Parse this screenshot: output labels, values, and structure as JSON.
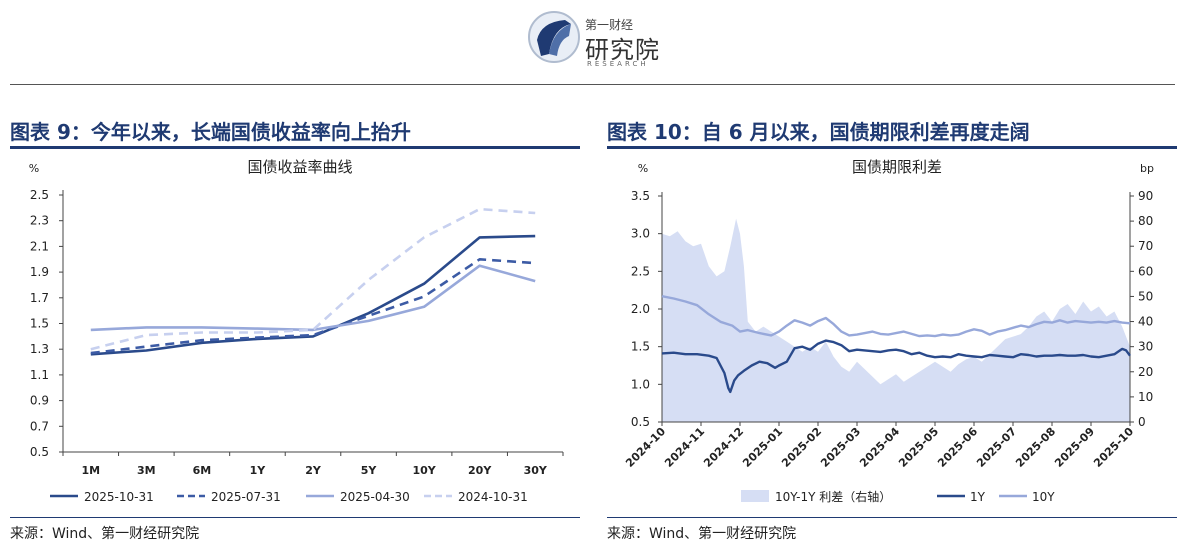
{
  "logo": {
    "top": "第一财经",
    "main": "研究院",
    "sub": "RESEARCH"
  },
  "left_panel": {
    "title": "图表 9：今年以来，长端国债收益率向上抬升",
    "source": "来源：Wind、第一财经研究院"
  },
  "right_panel": {
    "title": "图表 10：自 6 月以来，国债期限利差再度走阔",
    "source": "来源：Wind、第一财经研究院"
  },
  "chart_data": [
    {
      "type": "line",
      "title": "国债收益率曲线",
      "ylabel": "%",
      "categories": [
        "1M",
        "3M",
        "6M",
        "1Y",
        "2Y",
        "5Y",
        "10Y",
        "20Y",
        "30Y"
      ],
      "ylim": [
        0.5,
        2.5
      ],
      "yticks": [
        "0.5",
        "0.7",
        "0.9",
        "1.1",
        "1.3",
        "1.5",
        "1.7",
        "1.9",
        "2.1",
        "2.3",
        "2.5"
      ],
      "grid": false,
      "legend": "bottom",
      "series": [
        {
          "name": "2025-10-31",
          "color": "#2a4a8b",
          "dash": "solid",
          "values": [
            1.26,
            1.29,
            1.35,
            1.38,
            1.4,
            1.58,
            1.81,
            2.17,
            2.18
          ]
        },
        {
          "name": "2025-07-31",
          "color": "#3c5ba5",
          "dash": "dashed",
          "values": [
            1.27,
            1.32,
            1.37,
            1.39,
            1.41,
            1.56,
            1.71,
            2.0,
            1.97
          ]
        },
        {
          "name": "2025-04-30",
          "color": "#97a8da",
          "dash": "solid",
          "values": [
            1.45,
            1.47,
            1.47,
            1.46,
            1.45,
            1.52,
            1.63,
            1.95,
            1.83
          ]
        },
        {
          "name": "2024-10-31",
          "color": "#c7d0ef",
          "dash": "dashed",
          "values": [
            1.3,
            1.41,
            1.43,
            1.43,
            1.45,
            1.84,
            2.17,
            2.39,
            2.36
          ]
        }
      ]
    },
    {
      "type": "line",
      "title": "国债期限利差",
      "ylabel": "%",
      "y2label": "bp",
      "xlabels": [
        "2024-10",
        "2024-11",
        "2024-12",
        "2025-01",
        "2025-02",
        "2025-03",
        "2025-04",
        "2025-05",
        "2025-06",
        "2025-07",
        "2025-08",
        "2025-09",
        "2025-10"
      ],
      "ylim": [
        0.5,
        3.5
      ],
      "y2lim": [
        0,
        90
      ],
      "yticks": [
        "0.5",
        "1.0",
        "1.5",
        "2.0",
        "2.5",
        "3.0",
        "3.5"
      ],
      "y2ticks": [
        "0",
        "10",
        "20",
        "30",
        "40",
        "50",
        "60",
        "70",
        "80",
        "90"
      ],
      "legend": "bottom",
      "series": [
        {
          "name": "10Y-1Y 利差（右轴）",
          "axis": "right",
          "kind": "area",
          "color": "#d6def4",
          "x": [
            0,
            0.2,
            0.4,
            0.6,
            0.8,
            1.0,
            1.2,
            1.4,
            1.6,
            1.75,
            1.9,
            2.0,
            2.1,
            2.2,
            2.4,
            2.6,
            2.8,
            3.0,
            3.2,
            3.4,
            3.6,
            3.8,
            4.0,
            4.2,
            4.4,
            4.6,
            4.8,
            5.0,
            5.2,
            5.4,
            5.6,
            5.8,
            6.0,
            6.2,
            6.4,
            6.6,
            6.8,
            7.0,
            7.2,
            7.4,
            7.6,
            7.8,
            8.0,
            8.2,
            8.4,
            8.6,
            8.8,
            9.0,
            9.2,
            9.4,
            9.6,
            9.8,
            10.0,
            10.2,
            10.4,
            10.6,
            10.8,
            11.0,
            11.2,
            11.4,
            11.6,
            11.8,
            12.0
          ],
          "values": [
            75,
            74,
            76,
            72,
            70,
            71,
            62,
            58,
            60,
            70,
            81,
            75,
            62,
            40,
            36,
            38,
            36,
            34,
            32,
            30,
            28,
            30,
            28,
            32,
            26,
            22,
            20,
            24,
            21,
            18,
            15,
            17,
            19,
            16,
            18,
            20,
            22,
            24,
            22,
            20,
            23,
            25,
            26,
            24,
            27,
            30,
            33,
            34,
            35,
            38,
            42,
            44,
            40,
            45,
            47,
            43,
            48,
            44,
            46,
            42,
            44,
            38,
            30
          ]
        },
        {
          "name": "1Y",
          "axis": "left",
          "color": "#2a4a8b",
          "x": [
            0,
            0.3,
            0.6,
            0.9,
            1.2,
            1.4,
            1.6,
            1.7,
            1.75,
            1.85,
            1.95,
            2.1,
            2.3,
            2.5,
            2.7,
            2.9,
            3.0,
            3.2,
            3.4,
            3.6,
            3.8,
            4.0,
            4.2,
            4.4,
            4.6,
            4.8,
            5.0,
            5.2,
            5.4,
            5.6,
            5.8,
            6.0,
            6.2,
            6.4,
            6.6,
            6.8,
            7.0,
            7.2,
            7.4,
            7.6,
            7.8,
            8.0,
            8.2,
            8.4,
            8.6,
            8.8,
            9.0,
            9.2,
            9.4,
            9.6,
            9.8,
            10.0,
            10.2,
            10.4,
            10.6,
            10.8,
            11.0,
            11.2,
            11.4,
            11.6,
            11.8,
            11.9,
            12.0
          ],
          "values": [
            1.41,
            1.42,
            1.4,
            1.4,
            1.38,
            1.35,
            1.15,
            0.95,
            0.9,
            1.05,
            1.12,
            1.18,
            1.25,
            1.3,
            1.28,
            1.22,
            1.25,
            1.3,
            1.48,
            1.5,
            1.46,
            1.54,
            1.58,
            1.56,
            1.52,
            1.44,
            1.46,
            1.45,
            1.44,
            1.43,
            1.45,
            1.46,
            1.44,
            1.4,
            1.42,
            1.38,
            1.36,
            1.37,
            1.36,
            1.4,
            1.38,
            1.37,
            1.36,
            1.39,
            1.38,
            1.37,
            1.36,
            1.4,
            1.39,
            1.37,
            1.38,
            1.38,
            1.39,
            1.38,
            1.38,
            1.39,
            1.37,
            1.36,
            1.38,
            1.4,
            1.47,
            1.45,
            1.38
          ]
        },
        {
          "name": "10Y",
          "axis": "left",
          "color": "#97a8da",
          "x": [
            0,
            0.3,
            0.6,
            0.9,
            1.2,
            1.5,
            1.8,
            2.0,
            2.2,
            2.5,
            2.8,
            3.0,
            3.2,
            3.4,
            3.6,
            3.8,
            4.0,
            4.2,
            4.4,
            4.6,
            4.8,
            5.0,
            5.2,
            5.4,
            5.6,
            5.8,
            6.0,
            6.2,
            6.4,
            6.6,
            6.8,
            7.0,
            7.2,
            7.4,
            7.6,
            7.8,
            8.0,
            8.2,
            8.4,
            8.6,
            8.8,
            9.0,
            9.2,
            9.4,
            9.6,
            9.8,
            10.0,
            10.2,
            10.4,
            10.6,
            10.8,
            11.0,
            11.2,
            11.4,
            11.6,
            11.8,
            12.0
          ],
          "values": [
            2.17,
            2.14,
            2.1,
            2.05,
            1.93,
            1.83,
            1.78,
            1.7,
            1.72,
            1.68,
            1.65,
            1.7,
            1.78,
            1.85,
            1.82,
            1.78,
            1.84,
            1.88,
            1.8,
            1.7,
            1.65,
            1.66,
            1.68,
            1.7,
            1.67,
            1.66,
            1.68,
            1.7,
            1.67,
            1.64,
            1.65,
            1.64,
            1.66,
            1.65,
            1.66,
            1.7,
            1.73,
            1.71,
            1.66,
            1.7,
            1.72,
            1.75,
            1.78,
            1.76,
            1.8,
            1.83,
            1.82,
            1.85,
            1.82,
            1.84,
            1.83,
            1.82,
            1.83,
            1.82,
            1.84,
            1.82,
            1.81
          ]
        }
      ]
    }
  ]
}
